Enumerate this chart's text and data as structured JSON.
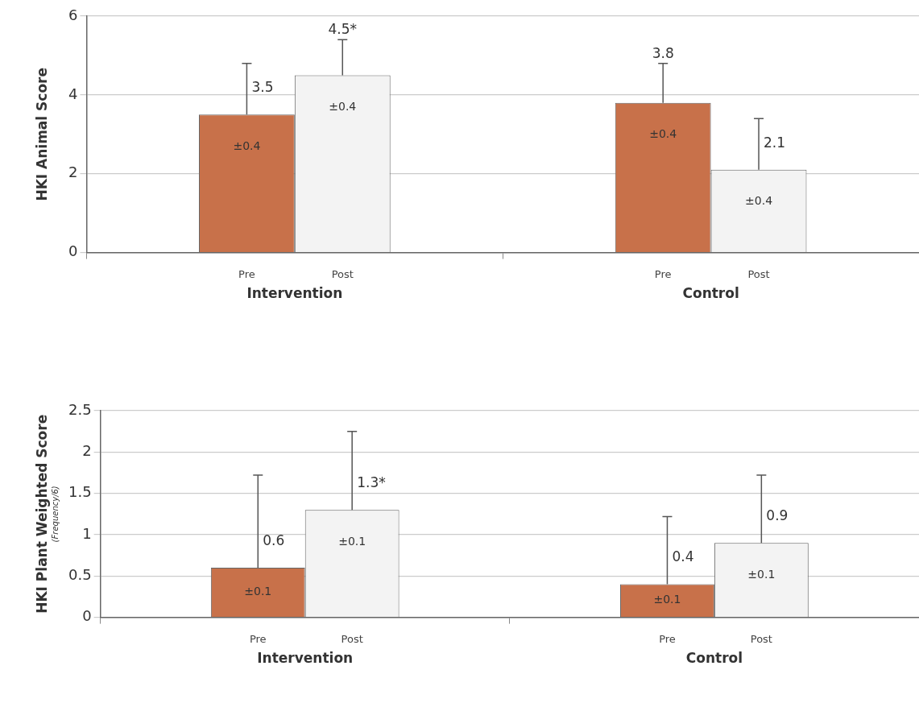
{
  "chart_data": [
    {
      "type": "bar",
      "ylabel": "HKI Animal Score",
      "categories": [
        "Intervention",
        "Control"
      ],
      "series": [
        {
          "name": "Pre",
          "color": "#c8714a",
          "values": [
            3.5,
            3.8
          ],
          "errors": [
            [
              3.5,
              4.8
            ],
            [
              3.8,
              4.8
            ]
          ],
          "value_labels": [
            "3.5",
            "3.8"
          ]
        },
        {
          "name": "Post",
          "color": "#f3f3f3",
          "values": [
            4.5,
            2.1
          ],
          "errors": [
            [
              4.5,
              5.4
            ],
            [
              2.1,
              3.4
            ]
          ],
          "value_labels": [
            "4.5*",
            "2.1"
          ]
        }
      ],
      "annotations": [
        "±0.4",
        "±0.4",
        "±0.4",
        "±0.4"
      ],
      "ylim": [
        0,
        6
      ],
      "yticks": [
        0,
        2,
        4,
        6
      ],
      "grid": "y",
      "legend": false
    },
    {
      "type": "bar",
      "ylabel": "HKI Plant Weighted Score\n(Frequency/6)",
      "categories": [
        "Intervention",
        "Control"
      ],
      "series": [
        {
          "name": "Pre",
          "color": "#c8714a",
          "values": [
            0.6,
            0.4
          ],
          "errors": [
            [
              0.6,
              1.72
            ],
            [
              0.4,
              1.22
            ]
          ],
          "value_labels": [
            "0.6",
            "0.4"
          ]
        },
        {
          "name": "Post",
          "color": "#f3f3f3",
          "values": [
            1.3,
            0.9
          ],
          "errors": [
            [
              1.3,
              2.25
            ],
            [
              0.9,
              1.72
            ]
          ],
          "value_labels": [
            "1.3*",
            "0.9"
          ]
        }
      ],
      "annotations": [
        "±0.1",
        "±0.1",
        "±0.1",
        "±0.1"
      ],
      "ylim": [
        0,
        2.5
      ],
      "yticks": [
        0,
        0.5,
        1,
        1.5,
        2,
        2.5
      ],
      "grid": "y",
      "legend": false
    }
  ]
}
